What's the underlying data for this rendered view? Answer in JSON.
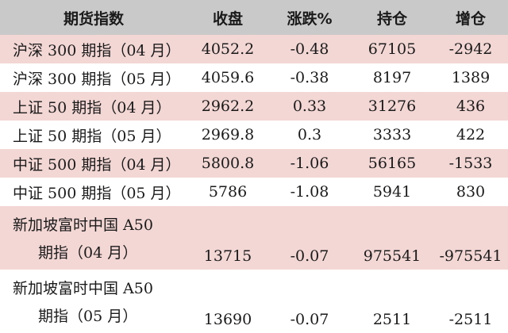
{
  "headers": [
    "期货指数",
    "收盘",
    "涨跌%",
    "持仓",
    "增仓"
  ],
  "rows": [
    {
      "name": "沪深 300 期指（04 月）",
      "close": "4052.2",
      "change": "-0.48",
      "position": "67105",
      "add": "-2942"
    },
    {
      "name": "沪深 300 期指（05 月）",
      "close": "4059.6",
      "change": "-0.38",
      "position": "8197",
      "add": "1389"
    },
    {
      "name": "上证 50 期指（04 月）",
      "close": "2962.2",
      "change": "0.33",
      "position": "31276",
      "add": "436"
    },
    {
      "name": "上证 50 期指（05 月）",
      "close": "2969.8",
      "change": "0.3",
      "position": "3333",
      "add": "422"
    },
    {
      "name": "中证 500 期指（04 月）",
      "close": "5800.8",
      "change": "-1.06",
      "position": "56165",
      "add": "-1533"
    },
    {
      "name": "中证 500 期指（05 月）",
      "close": "5786",
      "change": "-1.08",
      "position": "5941",
      "add": "830"
    },
    {
      "name_line1": "新加坡富时中国 A50",
      "name_line2": "期指（04 月）",
      "close": "13715",
      "change": "-0.07",
      "position": "975541",
      "add": "-975541"
    },
    {
      "name_line1": "新加坡富时中国 A50",
      "name_line2": "期指（05 月）",
      "close": "13690",
      "change": "-0.07",
      "position": "2511",
      "add": "-2511"
    }
  ],
  "colors": {
    "header_bg": "#c9c9c9",
    "pink_row_bg": "#f3d7d5",
    "white_row_bg": "#ffffff"
  }
}
